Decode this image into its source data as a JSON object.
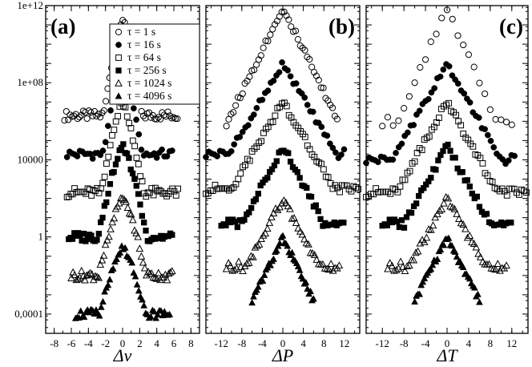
{
  "chart_data": {
    "type": "scatter",
    "y_scale": "log",
    "ylim": [
      1e-05,
      1000000000000.0
    ],
    "y_ticks": [
      {
        "value": 1000000000000.0,
        "label": "1e+12"
      },
      {
        "value": 100000000.0,
        "label": "1e+08"
      },
      {
        "value": 10000.0,
        "label": "10000"
      },
      {
        "value": 1,
        "label": "1"
      },
      {
        "value": 0.0001,
        "label": "0,0001"
      }
    ],
    "legend": {
      "location": "panel (a), upper right",
      "entries": [
        {
          "text": "τ = 1 s",
          "marker": "circle",
          "fill": "hollow"
        },
        {
          "text": "τ = 16 s",
          "marker": "circle",
          "fill": "solid"
        },
        {
          "text": "τ = 64 s",
          "marker": "square",
          "fill": "hollow"
        },
        {
          "text": "τ = 256 s",
          "marker": "square",
          "fill": "solid"
        },
        {
          "text": "τ = 1024 s",
          "marker": "triangle",
          "fill": "hollow"
        },
        {
          "text": "τ = 4096 s",
          "marker": "triangle",
          "fill": "solid"
        }
      ]
    },
    "panels": [
      {
        "label": "(a)",
        "xlabel": "Δv",
        "xlim": [
          -9,
          9
        ],
        "x_ticks": [
          -8,
          -6,
          -4,
          -2,
          0,
          2,
          4,
          6,
          8
        ],
        "series": [
          {
            "tau": "1 s",
            "peak": 200000000000.0,
            "slope": 1.75,
            "power": 1.3,
            "x_range": [
              -6.8,
              6.5
            ],
            "step": 0.22,
            "floor": 2000000.0
          },
          {
            "tau": "16 s",
            "peak": 1000000000.0,
            "slope": 1.6,
            "power": 1.3,
            "x_range": [
              -6.5,
              6.0
            ],
            "step": 0.3,
            "floor": 20000.0
          },
          {
            "tau": "64 s",
            "peak": 10000000.0,
            "slope": 1.45,
            "power": 1.3,
            "x_range": [
              -6.5,
              6.5
            ],
            "step": 0.22,
            "floor": 200.0
          },
          {
            "tau": "256 s",
            "peak": 50000.0,
            "slope": 1.15,
            "power": 1.35,
            "x_range": [
              -6.3,
              5.8
            ],
            "step": 0.22,
            "floor": 1.0
          },
          {
            "tau": "1024 s",
            "peak": 100.0,
            "slope": 0.95,
            "power": 1.4,
            "x_range": [
              -6.0,
              5.8
            ],
            "step": 0.2,
            "floor": 0.01
          },
          {
            "tau": "4096 s",
            "peak": 0.3,
            "slope": 0.85,
            "power": 1.45,
            "x_range": [
              -5.5,
              5.5
            ],
            "step": 0.2,
            "floor": 0.0001
          }
        ]
      },
      {
        "label": "(b)",
        "xlabel": "ΔP",
        "xlim": [
          -15,
          15
        ],
        "x_ticks": [
          -12,
          -8,
          -4,
          0,
          4,
          8,
          12
        ],
        "series": [
          {
            "tau": "1 s",
            "peak": 800000000000.0,
            "slope": 0.55,
            "power": 1.0,
            "x_range": [
              -11,
              11
            ],
            "step": 0.45,
            "floor": 1000000.0
          },
          {
            "tau": "16 s",
            "peak": 1000000000.0,
            "slope": 0.45,
            "power": 1.0,
            "x_range": [
              -15,
              12
            ],
            "step": 0.55,
            "floor": 20000.0
          },
          {
            "tau": "64 s",
            "peak": 10000000.0,
            "slope": 0.45,
            "power": 1.0,
            "x_range": [
              -15,
              15
            ],
            "step": 0.45,
            "floor": 300.0
          },
          {
            "tau": "256 s",
            "peak": 50000.0,
            "slope": 0.5,
            "power": 1.0,
            "x_range": [
              -12,
              12
            ],
            "step": 0.45,
            "floor": 5.0
          },
          {
            "tau": "1024 s",
            "peak": 100.0,
            "slope": 0.5,
            "power": 1.0,
            "x_range": [
              -11,
              11
            ],
            "step": 0.4,
            "floor": 0.03
          },
          {
            "tau": "4096 s",
            "peak": 1.0,
            "slope": 0.55,
            "power": 1.0,
            "x_range": [
              -6,
              6
            ],
            "step": 0.3,
            "floor": 0.0001
          }
        ]
      },
      {
        "label": "(c)",
        "xlabel": "ΔT",
        "xlim": [
          -15,
          15
        ],
        "x_ticks": [
          -12,
          -8,
          -4,
          0,
          4,
          8,
          12
        ],
        "series": [
          {
            "tau": "1 s",
            "peak": 800000000000.0,
            "slope": 0.65,
            "power": 1.0,
            "x_range": [
              -12,
              12
            ],
            "step": 1.0,
            "floor": 1000000.0
          },
          {
            "tau": "16 s",
            "peak": 1000000000.0,
            "slope": 0.5,
            "power": 1.0,
            "x_range": [
              -15,
              13
            ],
            "step": 0.55,
            "floor": 10000.0
          },
          {
            "tau": "64 s",
            "peak": 10000000.0,
            "slope": 0.5,
            "power": 1.0,
            "x_range": [
              -15,
              15
            ],
            "step": 0.45,
            "floor": 200.0
          },
          {
            "tau": "256 s",
            "peak": 50000.0,
            "slope": 0.5,
            "power": 1.0,
            "x_range": [
              -12,
              12
            ],
            "step": 0.45,
            "floor": 5.0
          },
          {
            "tau": "1024 s",
            "peak": 100.0,
            "slope": 0.5,
            "power": 1.0,
            "x_range": [
              -11,
              11
            ],
            "step": 0.4,
            "floor": 0.03
          },
          {
            "tau": "4096 s",
            "peak": 1.0,
            "slope": 0.55,
            "power": 1.0,
            "x_range": [
              -6,
              6
            ],
            "step": 0.3,
            "floor": 0.0001
          }
        ]
      }
    ]
  }
}
